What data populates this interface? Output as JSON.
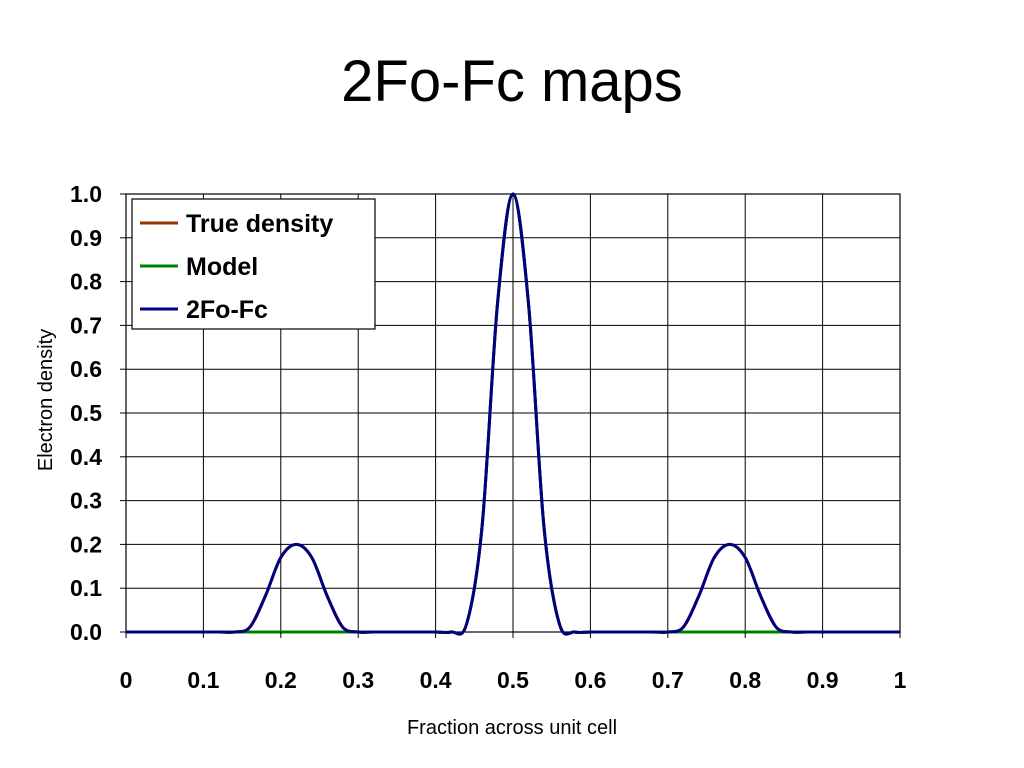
{
  "slide": {
    "title": "2Fo-Fc maps"
  },
  "chart_data": {
    "type": "line",
    "title": "",
    "xlabel": "Fraction across unit cell",
    "ylabel": "Electron density",
    "xlim": [
      0,
      1
    ],
    "ylim": [
      0,
      1.0
    ],
    "x_ticks": [
      "0",
      "0.1",
      "0.2",
      "0.3",
      "0.4",
      "0.5",
      "0.6",
      "0.7",
      "0.8",
      "0.9",
      "1"
    ],
    "x_tick_values": [
      0,
      0.1,
      0.2,
      0.3,
      0.4,
      0.5,
      0.6,
      0.7,
      0.8,
      0.9,
      1
    ],
    "y_ticks": [
      "0.0",
      "0.1",
      "0.2",
      "0.3",
      "0.4",
      "0.5",
      "0.6",
      "0.7",
      "0.8",
      "0.9",
      "1.0"
    ],
    "y_tick_values": [
      0,
      0.1,
      0.2,
      0.3,
      0.4,
      0.5,
      0.6,
      0.7,
      0.8,
      0.9,
      1.0
    ],
    "grid": true,
    "legend_position": "top-left",
    "x": [
      0,
      0.02,
      0.04,
      0.06,
      0.08,
      0.1,
      0.12,
      0.14,
      0.16,
      0.18,
      0.2,
      0.22,
      0.24,
      0.26,
      0.28,
      0.3,
      0.32,
      0.34,
      0.36,
      0.38,
      0.4,
      0.42,
      0.44,
      0.46,
      0.48,
      0.5,
      0.52,
      0.54,
      0.56,
      0.58,
      0.6,
      0.62,
      0.64,
      0.66,
      0.68,
      0.7,
      0.72,
      0.74,
      0.76,
      0.78,
      0.8,
      0.82,
      0.84,
      0.86,
      0.88,
      0.9,
      0.92,
      0.94,
      0.96,
      0.98,
      1.0
    ],
    "series": [
      {
        "name": "True density",
        "color": "#993300",
        "values": [
          0.0,
          0.0,
          0.0,
          0.0,
          0.0,
          0.0,
          0.0,
          0.0,
          0.011,
          0.082,
          0.17,
          0.2,
          0.17,
          0.082,
          0.011,
          0.0,
          0.0,
          0.0,
          0.0,
          0.0,
          0.0,
          0.0,
          0.018,
          0.24,
          0.75,
          1.0,
          0.75,
          0.24,
          0.018,
          0.0,
          0.0,
          0.0,
          0.0,
          0.0,
          0.0,
          0.0,
          0.011,
          0.082,
          0.17,
          0.2,
          0.17,
          0.082,
          0.011,
          0.0,
          0.0,
          0.0,
          0.0,
          0.0,
          0.0,
          0.0,
          0.0
        ]
      },
      {
        "name": "Model",
        "color": "#008000",
        "values": [
          0.0,
          0.0,
          0.0,
          0.0,
          0.0,
          0.0,
          0.0,
          0.0,
          0.0,
          0.0,
          0.0,
          0.0,
          0.0,
          0.0,
          0.0,
          0.0,
          0.0,
          0.0,
          0.0,
          0.0,
          0.0,
          0.0,
          0.018,
          0.24,
          0.75,
          1.0,
          0.75,
          0.24,
          0.018,
          0.0,
          0.0,
          0.0,
          0.0,
          0.0,
          0.0,
          0.0,
          0.0,
          0.0,
          0.0,
          0.0,
          0.0,
          0.0,
          0.0,
          0.0,
          0.0,
          0.0,
          0.0,
          0.0,
          0.0,
          0.0,
          0.0
        ]
      },
      {
        "name": "2Fo-Fc",
        "color": "#000080",
        "values": [
          0.0,
          0.0,
          0.0,
          0.0,
          0.0,
          0.0,
          0.0,
          0.0,
          0.011,
          0.082,
          0.17,
          0.2,
          0.17,
          0.082,
          0.011,
          0.0,
          0.0,
          0.0,
          0.0,
          0.0,
          0.0,
          0.0,
          0.018,
          0.24,
          0.75,
          1.0,
          0.75,
          0.24,
          0.018,
          0.0,
          0.0,
          0.0,
          0.0,
          0.0,
          0.0,
          0.0,
          0.011,
          0.082,
          0.17,
          0.2,
          0.17,
          0.082,
          0.011,
          0.0,
          0.0,
          0.0,
          0.0,
          0.0,
          0.0,
          0.0,
          0.0
        ]
      }
    ]
  }
}
